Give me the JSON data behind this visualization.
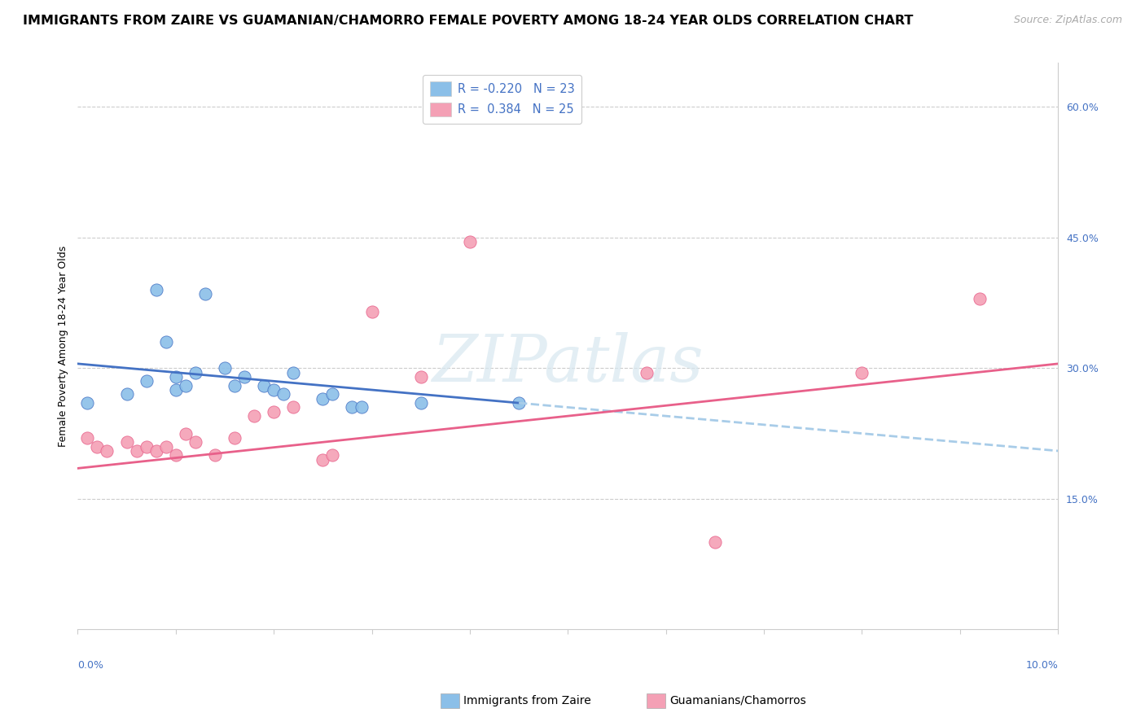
{
  "title": "IMMIGRANTS FROM ZAIRE VS GUAMANIAN/CHAMORRO FEMALE POVERTY AMONG 18-24 YEAR OLDS CORRELATION CHART",
  "source": "Source: ZipAtlas.com",
  "ylabel": "Female Poverty Among 18-24 Year Olds",
  "legend1_r": "R = -0.220",
  "legend1_n": "N = 23",
  "legend2_r": "R =  0.384",
  "legend2_n": "N = 25",
  "watermark": "ZIPatlas",
  "blue_scatter_x": [
    0.1,
    0.5,
    0.7,
    0.8,
    0.9,
    1.0,
    1.0,
    1.1,
    1.2,
    1.3,
    1.5,
    1.6,
    1.7,
    1.9,
    2.0,
    2.1,
    2.2,
    2.5,
    2.6,
    2.8,
    2.9,
    3.5,
    4.5
  ],
  "blue_scatter_y": [
    26.0,
    27.0,
    28.5,
    39.0,
    33.0,
    27.5,
    29.0,
    28.0,
    29.5,
    38.5,
    30.0,
    28.0,
    29.0,
    28.0,
    27.5,
    27.0,
    29.5,
    26.5,
    27.0,
    25.5,
    25.5,
    26.0,
    26.0
  ],
  "pink_scatter_x": [
    0.1,
    0.2,
    0.3,
    0.5,
    0.6,
    0.7,
    0.8,
    0.9,
    1.0,
    1.1,
    1.2,
    1.4,
    1.6,
    1.8,
    2.0,
    2.2,
    2.5,
    2.6,
    3.0,
    3.5,
    4.0,
    5.8,
    6.5,
    8.0,
    9.2
  ],
  "pink_scatter_y": [
    22.0,
    21.0,
    20.5,
    21.5,
    20.5,
    21.0,
    20.5,
    21.0,
    20.0,
    22.5,
    21.5,
    20.0,
    22.0,
    24.5,
    25.0,
    25.5,
    19.5,
    20.0,
    36.5,
    29.0,
    44.5,
    29.5,
    10.0,
    29.5,
    38.0
  ],
  "blue_line_x": [
    0.0,
    10.0
  ],
  "blue_line_y": [
    30.5,
    20.5
  ],
  "blue_dash_start_x": 4.5,
  "pink_line_x": [
    0.0,
    10.0
  ],
  "pink_line_y": [
    18.5,
    30.5
  ],
  "blue_scatter_color": "#8bbfe8",
  "pink_scatter_color": "#f4a0b5",
  "blue_line_color": "#4472c4",
  "pink_line_color": "#e8608a",
  "dashed_line_color": "#a8cce8",
  "xlim": [
    0.0,
    10.0
  ],
  "ylim": [
    0.0,
    65.0
  ],
  "yticks": [
    15.0,
    30.0,
    45.0,
    60.0
  ],
  "xticks": [
    0.0,
    1.0,
    2.0,
    3.0,
    4.0,
    5.0,
    6.0,
    7.0,
    8.0,
    9.0,
    10.0
  ],
  "scatter_size": 120,
  "title_fontsize": 11.5,
  "axis_label_fontsize": 9,
  "tick_fontsize": 9,
  "legend_fontsize": 10.5,
  "source_fontsize": 9
}
